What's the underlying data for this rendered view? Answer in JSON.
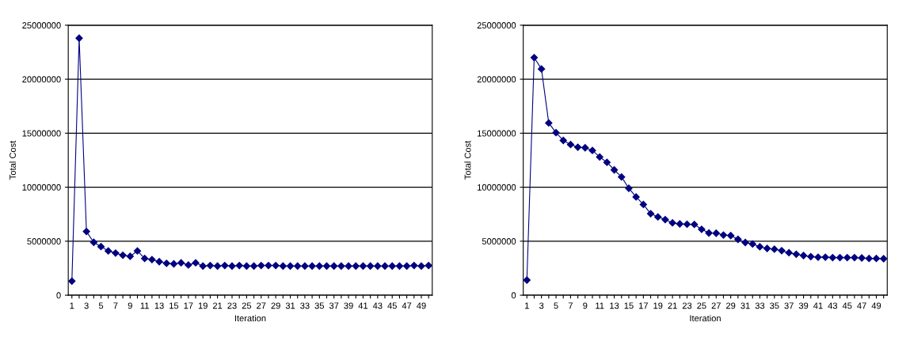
{
  "chart_data": [
    {
      "type": "line",
      "xlabel": "Iteration",
      "ylabel": "Total Cost",
      "categories": [
        "1",
        null,
        "3",
        null,
        "5",
        null,
        "7",
        null,
        "9",
        null,
        "11",
        null,
        "13",
        null,
        "15",
        null,
        "17",
        null,
        "19",
        null,
        "21",
        null,
        "23",
        null,
        "25",
        null,
        "27",
        null,
        "29",
        null,
        "31",
        null,
        "33",
        null,
        "35",
        null,
        "37",
        null,
        "39",
        null,
        "41",
        null,
        "43",
        null,
        "45",
        null,
        "47",
        null,
        "49",
        null
      ],
      "series": [
        {
          "color": "#000080",
          "values": [
            1300000,
            23800000,
            5900000,
            4900000,
            4500000,
            4100000,
            3900000,
            3700000,
            3600000,
            4100000,
            3400000,
            3300000,
            3100000,
            2950000,
            2900000,
            3000000,
            2800000,
            3000000,
            2700000,
            2750000,
            2700000,
            2750000,
            2700000,
            2750000,
            2700000,
            2700000,
            2750000,
            2750000,
            2750000,
            2700000,
            2700000,
            2700000,
            2700000,
            2700000,
            2700000,
            2700000,
            2700000,
            2700000,
            2700000,
            2700000,
            2700000,
            2700000,
            2700000,
            2700000,
            2700000,
            2700000,
            2700000,
            2750000,
            2700000,
            2750000
          ]
        }
      ],
      "ylim": [
        0,
        25000000
      ],
      "yticks": [
        0,
        5000000,
        10000000,
        15000000,
        20000000,
        25000000
      ],
      "grid": "y",
      "marker": "diamond",
      "line_style": "solid"
    },
    {
      "type": "line",
      "xlabel": "Iteration",
      "ylabel": "Total Cost",
      "categories": [
        "1",
        null,
        "3",
        null,
        "5",
        null,
        "7",
        null,
        "9",
        null,
        "11",
        null,
        "13",
        null,
        "15",
        null,
        "17",
        null,
        "19",
        null,
        "21",
        null,
        "23",
        null,
        "25",
        null,
        "27",
        null,
        "29",
        null,
        "31",
        null,
        "33",
        null,
        "35",
        null,
        "37",
        null,
        "39",
        null,
        "41",
        null,
        "43",
        null,
        "45",
        null,
        "47",
        null,
        "49",
        null
      ],
      "series": [
        {
          "color": "#000080",
          "values": [
            1400000,
            22000000,
            20950000,
            15950000,
            15050000,
            14330000,
            13950000,
            13700000,
            13650000,
            13400000,
            12800000,
            12300000,
            11600000,
            10950000,
            9900000,
            9100000,
            8400000,
            7550000,
            7250000,
            7000000,
            6700000,
            6600000,
            6570000,
            6550000,
            6100000,
            5760000,
            5740000,
            5570000,
            5520000,
            5170000,
            4880000,
            4740000,
            4480000,
            4330000,
            4260000,
            4120000,
            3930000,
            3790000,
            3670000,
            3570000,
            3520000,
            3520000,
            3480000,
            3480000,
            3480000,
            3480000,
            3450000,
            3400000,
            3400000,
            3380000
          ]
        }
      ],
      "ylim": [
        0,
        25000000
      ],
      "yticks": [
        0,
        5000000,
        10000000,
        15000000,
        20000000,
        25000000
      ],
      "grid": "y",
      "marker": "diamond",
      "line_style": "solid"
    }
  ]
}
